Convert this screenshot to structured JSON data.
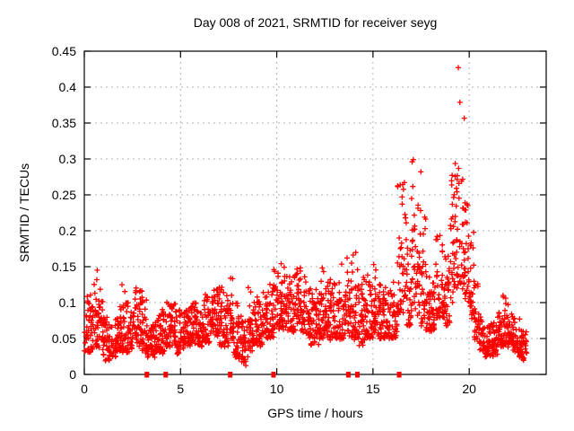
{
  "chart_data": {
    "type": "scatter",
    "title": "Day 008 of 2021, SRMTID for receiver seyg",
    "xlabel": "GPS time / hours",
    "ylabel": "SRMTID / TECUs",
    "xlim": [
      0,
      24
    ],
    "ylim": [
      0,
      0.45
    ],
    "xticks": [
      0,
      5,
      10,
      15,
      20
    ],
    "xtick_labels": [
      "0",
      "5",
      "10",
      "15",
      "20"
    ],
    "yticks": [
      0,
      0.05,
      0.1,
      0.15,
      0.2,
      0.25,
      0.3,
      0.35,
      0.4,
      0.45
    ],
    "ytick_labels": [
      "0",
      "0.05",
      "0.1",
      "0.15",
      "0.2",
      "0.25",
      "0.3",
      "0.35",
      "0.4",
      "0.45"
    ],
    "grid": true,
    "legend": "none",
    "marker": "plus",
    "marker_color": "#ff0000",
    "event_marker": "filled-square",
    "event_marker_color": "#ff0000",
    "grid_color": "#b0b0b0",
    "axis_color": "#000000",
    "background_color": "#ffffff",
    "data_start_hour": 0.0,
    "data_end_hour": 23.0,
    "max_value": 0.43,
    "max_value_hour": 19.35,
    "event_markers_hours": [
      3.25,
      4.23,
      7.58,
      9.83,
      13.72,
      14.19,
      16.36
    ],
    "envelope_bin_hours": 0.25,
    "points_per_bin": 26,
    "spike_fraction": 0.15,
    "seed": 20210108,
    "envelope": [
      [
        0.0,
        0.03,
        0.1,
        0.12
      ],
      [
        0.25,
        0.03,
        0.09,
        0.11
      ],
      [
        0.5,
        0.04,
        0.12,
        0.16
      ],
      [
        0.75,
        0.03,
        0.1,
        0.13
      ],
      [
        1.0,
        0.02,
        0.07,
        0.08
      ],
      [
        1.25,
        0.02,
        0.06,
        0.07
      ],
      [
        1.5,
        0.025,
        0.07,
        0.08
      ],
      [
        1.75,
        0.03,
        0.08,
        0.13
      ],
      [
        2.0,
        0.03,
        0.08,
        0.12
      ],
      [
        2.25,
        0.03,
        0.08,
        0.1
      ],
      [
        2.5,
        0.04,
        0.1,
        0.12
      ],
      [
        2.75,
        0.04,
        0.1,
        0.12
      ],
      [
        3.0,
        0.03,
        0.08,
        0.11
      ],
      [
        3.25,
        0.025,
        0.06,
        0.07
      ],
      [
        3.5,
        0.025,
        0.06,
        0.07
      ],
      [
        3.75,
        0.03,
        0.07,
        0.08
      ],
      [
        4.0,
        0.03,
        0.08,
        0.09
      ],
      [
        4.25,
        0.04,
        0.09,
        0.1
      ],
      [
        4.5,
        0.04,
        0.09,
        0.1
      ],
      [
        4.75,
        0.03,
        0.08,
        0.09
      ],
      [
        5.0,
        0.035,
        0.08,
        0.09
      ],
      [
        5.25,
        0.04,
        0.08,
        0.09
      ],
      [
        5.5,
        0.04,
        0.09,
        0.1
      ],
      [
        5.75,
        0.04,
        0.09,
        0.1
      ],
      [
        6.0,
        0.04,
        0.09,
        0.11
      ],
      [
        6.25,
        0.045,
        0.1,
        0.11
      ],
      [
        6.5,
        0.05,
        0.1,
        0.12
      ],
      [
        6.75,
        0.05,
        0.11,
        0.12
      ],
      [
        7.0,
        0.04,
        0.1,
        0.12
      ],
      [
        7.25,
        0.04,
        0.1,
        0.11
      ],
      [
        7.5,
        0.05,
        0.11,
        0.135
      ],
      [
        7.75,
        0.025,
        0.08,
        0.1
      ],
      [
        8.0,
        0.02,
        0.07,
        0.08
      ],
      [
        8.25,
        0.015,
        0.06,
        0.08
      ],
      [
        8.5,
        0.03,
        0.08,
        0.12
      ],
      [
        8.75,
        0.04,
        0.09,
        0.11
      ],
      [
        9.0,
        0.04,
        0.09,
        0.1
      ],
      [
        9.25,
        0.05,
        0.1,
        0.12
      ],
      [
        9.5,
        0.05,
        0.11,
        0.13
      ],
      [
        9.75,
        0.05,
        0.12,
        0.15
      ],
      [
        10.0,
        0.06,
        0.12,
        0.16
      ],
      [
        10.25,
        0.06,
        0.13,
        0.17
      ],
      [
        10.5,
        0.06,
        0.12,
        0.15
      ],
      [
        10.75,
        0.06,
        0.12,
        0.14
      ],
      [
        11.0,
        0.06,
        0.13,
        0.15
      ],
      [
        11.25,
        0.06,
        0.12,
        0.14
      ],
      [
        11.5,
        0.05,
        0.11,
        0.13
      ],
      [
        11.75,
        0.04,
        0.1,
        0.12
      ],
      [
        12.0,
        0.04,
        0.1,
        0.12
      ],
      [
        12.25,
        0.05,
        0.11,
        0.15
      ],
      [
        12.5,
        0.05,
        0.11,
        0.13
      ],
      [
        12.75,
        0.05,
        0.12,
        0.14
      ],
      [
        13.0,
        0.05,
        0.11,
        0.13
      ],
      [
        13.25,
        0.05,
        0.12,
        0.16
      ],
      [
        13.5,
        0.05,
        0.13,
        0.17
      ],
      [
        13.75,
        0.05,
        0.13,
        0.18
      ],
      [
        14.0,
        0.05,
        0.12,
        0.18
      ],
      [
        14.25,
        0.04,
        0.11,
        0.13
      ],
      [
        14.5,
        0.05,
        0.12,
        0.15
      ],
      [
        14.75,
        0.05,
        0.11,
        0.13
      ],
      [
        15.0,
        0.06,
        0.12,
        0.16
      ],
      [
        15.25,
        0.05,
        0.11,
        0.13
      ],
      [
        15.5,
        0.05,
        0.11,
        0.12
      ],
      [
        15.75,
        0.05,
        0.1,
        0.12
      ],
      [
        16.0,
        0.05,
        0.11,
        0.13
      ],
      [
        16.25,
        0.08,
        0.2,
        0.27
      ],
      [
        16.5,
        0.08,
        0.22,
        0.27
      ],
      [
        16.75,
        0.07,
        0.15,
        0.2
      ],
      [
        17.0,
        0.08,
        0.22,
        0.3
      ],
      [
        17.25,
        0.08,
        0.24,
        0.305
      ],
      [
        17.5,
        0.07,
        0.18,
        0.25
      ],
      [
        17.75,
        0.06,
        0.12,
        0.15
      ],
      [
        18.0,
        0.06,
        0.11,
        0.13
      ],
      [
        18.25,
        0.08,
        0.16,
        0.2
      ],
      [
        18.5,
        0.08,
        0.15,
        0.19
      ],
      [
        18.75,
        0.07,
        0.14,
        0.17
      ],
      [
        19.0,
        0.1,
        0.22,
        0.28
      ],
      [
        19.25,
        0.12,
        0.3,
        0.43
      ],
      [
        19.5,
        0.12,
        0.28,
        0.38
      ],
      [
        19.75,
        0.1,
        0.2,
        0.25
      ],
      [
        20.0,
        0.08,
        0.15,
        0.2
      ],
      [
        20.25,
        0.05,
        0.1,
        0.13
      ],
      [
        20.5,
        0.03,
        0.07,
        0.08
      ],
      [
        20.75,
        0.025,
        0.06,
        0.07
      ],
      [
        21.0,
        0.025,
        0.06,
        0.07
      ],
      [
        21.25,
        0.03,
        0.07,
        0.08
      ],
      [
        21.5,
        0.04,
        0.08,
        0.1
      ],
      [
        21.75,
        0.04,
        0.09,
        0.11
      ],
      [
        22.0,
        0.04,
        0.08,
        0.1
      ],
      [
        22.25,
        0.03,
        0.07,
        0.08
      ],
      [
        22.5,
        0.025,
        0.06,
        0.08
      ],
      [
        22.75,
        0.02,
        0.05,
        0.06
      ]
    ]
  }
}
